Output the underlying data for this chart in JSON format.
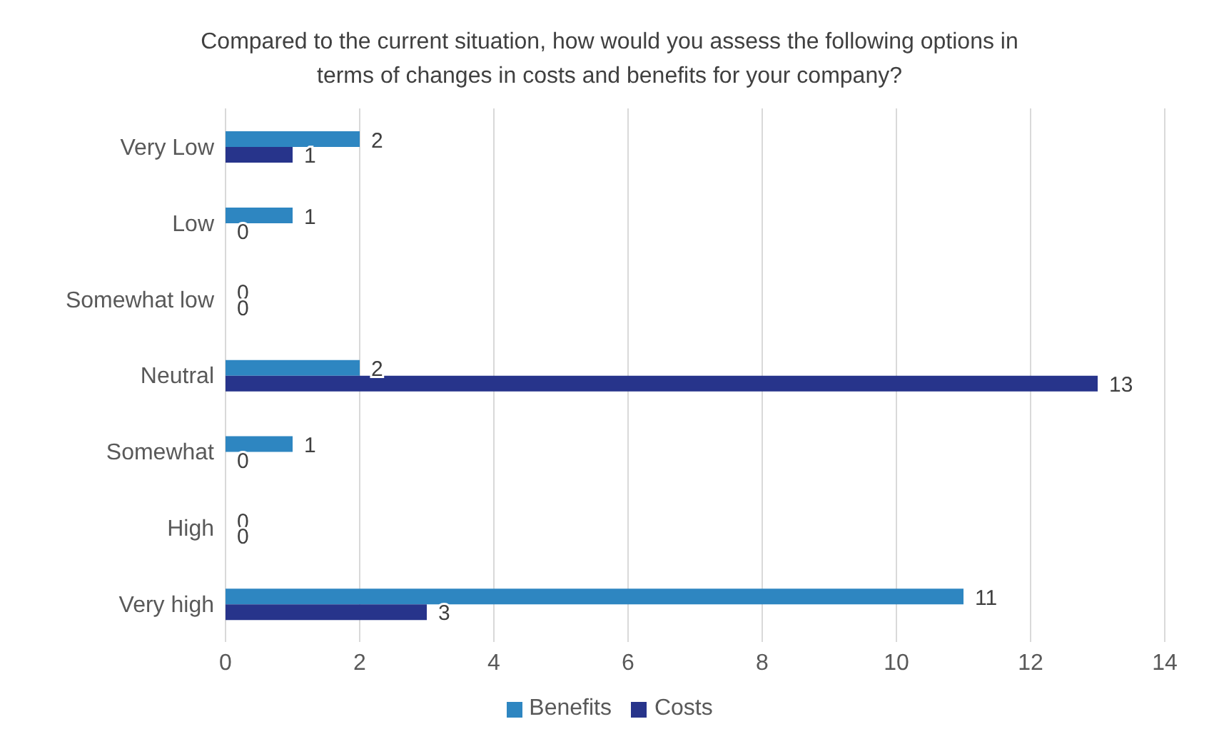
{
  "chart_data": {
    "type": "bar",
    "orientation": "horizontal",
    "title": "Compared to the current situation, how would you assess the following options in terms of changes in costs and benefits for your company?",
    "categories": [
      "Very Low",
      "Low",
      "Somewhat low",
      "Neutral",
      "Somewhat",
      "High",
      "Very high"
    ],
    "series": [
      {
        "name": "Benefits",
        "color": "#2e86c1",
        "values": [
          2,
          1,
          0,
          2,
          1,
          0,
          11
        ]
      },
      {
        "name": "Costs",
        "color": "#27348b",
        "values": [
          1,
          0,
          0,
          13,
          0,
          0,
          3
        ]
      }
    ],
    "xlim": [
      0,
      14
    ],
    "xticks": [
      0,
      2,
      4,
      6,
      8,
      10,
      12,
      14
    ],
    "grid": "x",
    "legend": "bottom",
    "data_labels": true
  }
}
